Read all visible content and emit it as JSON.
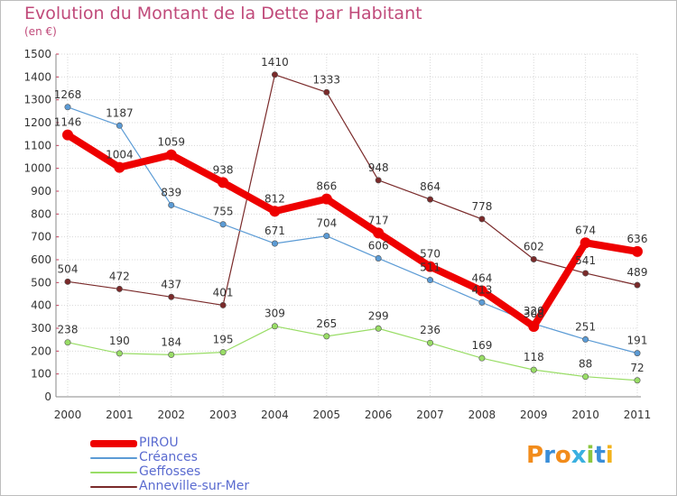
{
  "title": "Evolution du Montant de la Dette par Habitant",
  "unit": "(en €)",
  "brand": "Proxiti",
  "colors": {
    "title": "#c04a7a",
    "grid": "#d8d8d8",
    "axis": "#888888",
    "brand_letters": [
      "#f28c1b",
      "#3a8ed8",
      "#f28c1b",
      "#3ab0e0",
      "#8cc63f",
      "#3a8ed8",
      "#f2b21b"
    ]
  },
  "chart_data": {
    "type": "line",
    "title": "Evolution du Montant de la Dette par Habitant",
    "ylabel": "(en €)",
    "xlabel": "",
    "x": [
      "2000",
      "2001",
      "2002",
      "2003",
      "2004",
      "2005",
      "2006",
      "2007",
      "2008",
      "2009",
      "2010",
      "2011"
    ],
    "ylim": [
      0,
      1500
    ],
    "yticks": [
      0,
      100,
      200,
      300,
      400,
      500,
      600,
      700,
      800,
      900,
      1000,
      1100,
      1200,
      1300,
      1400,
      1500
    ],
    "grid": true,
    "legend": "bottom-left",
    "series": [
      {
        "name": "PIROU",
        "color": "#ee0000",
        "values": [
          1146,
          1004,
          1059,
          938,
          812,
          866,
          717,
          570,
          464,
          308,
          674,
          636
        ],
        "labels": [
          "1146",
          "1004",
          "1059",
          "938",
          "812",
          "866",
          "717",
          "570",
          "464",
          "308",
          "674",
          "636"
        ]
      },
      {
        "name": "Créances",
        "color": "#5b9bd5",
        "values": [
          1268,
          1187,
          839,
          755,
          671,
          704,
          606,
          511,
          413,
          320,
          251,
          191
        ],
        "labels": [
          "1268",
          "1187",
          "839",
          "755",
          "671",
          "704",
          "606",
          "511",
          "413",
          "320",
          "251",
          "191"
        ]
      },
      {
        "name": "Geffosses",
        "color": "#99dd66",
        "values": [
          238,
          190,
          184,
          195,
          309,
          265,
          299,
          236,
          169,
          118,
          88,
          72
        ],
        "labels": [
          "238",
          "190",
          "184",
          "195",
          "309",
          "265",
          "299",
          "236",
          "169",
          "118",
          "88",
          "72"
        ]
      },
      {
        "name": "Anneville-sur-Mer",
        "color": "#7a2a2a",
        "values": [
          504,
          472,
          437,
          401,
          1410,
          1333,
          948,
          864,
          778,
          602,
          541,
          489
        ],
        "labels": [
          "504",
          "472",
          "437",
          "401",
          "1410",
          "1333",
          "948",
          "864",
          "778",
          "602",
          "541",
          "489"
        ]
      }
    ]
  }
}
